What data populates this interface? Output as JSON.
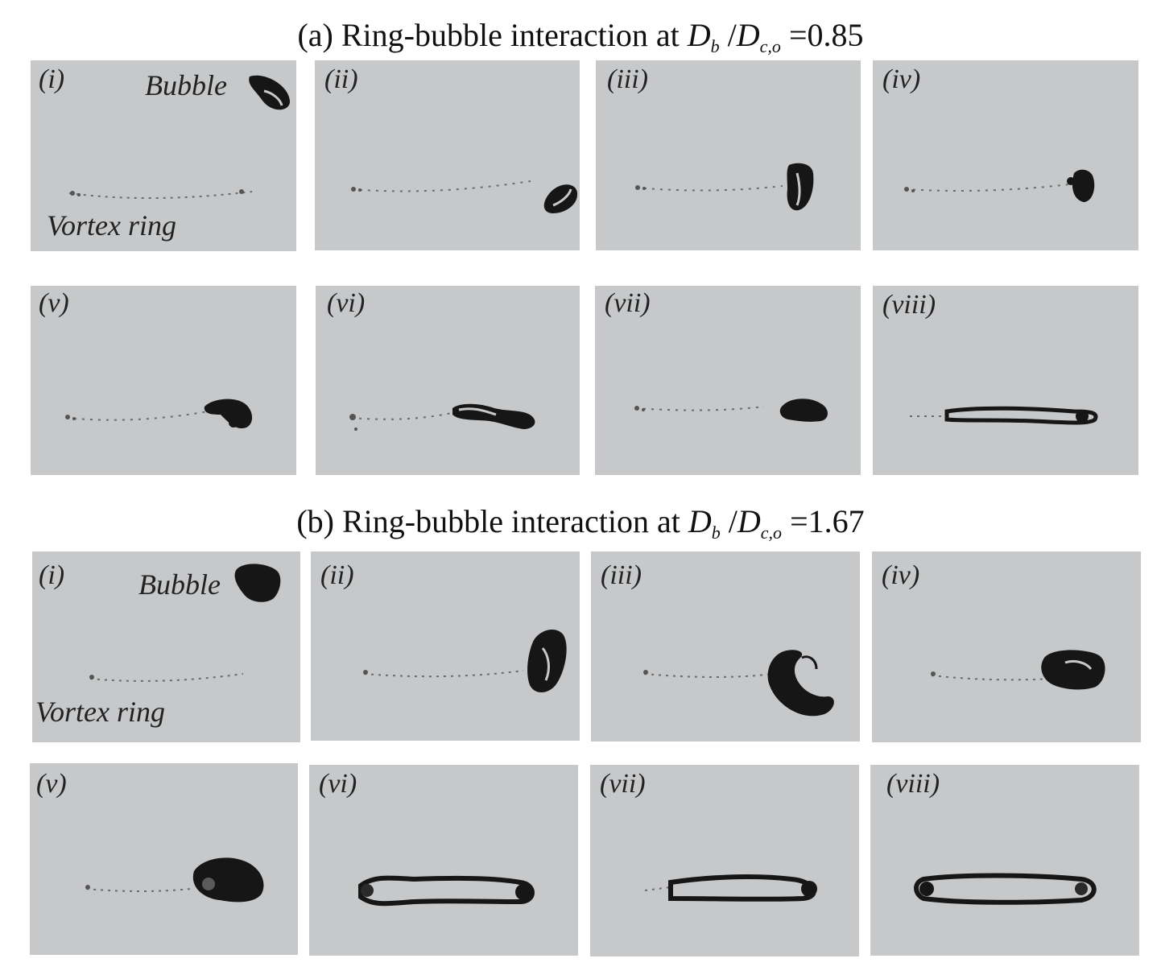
{
  "figure": {
    "section_a": {
      "title_prefix": "(a) Ring-bubble interaction at ",
      "sym_D": "D",
      "sub_b": "b",
      "slash": " /",
      "sub_co": "c,o",
      "ratio": " =0.85",
      "panel_labels": [
        "(i)",
        "(ii)",
        "(iii)",
        "(iv)",
        "(v)",
        "(vi)",
        "(vii)",
        "(viii)"
      ],
      "bubble_label": "Bubble",
      "vortex_label": "Vortex ring"
    },
    "section_b": {
      "title_prefix": "(b) Ring-bubble interaction at ",
      "sym_D": "D",
      "sub_b": "b",
      "slash": " /",
      "sub_co": "c,o",
      "ratio": " =1.67",
      "panel_labels": [
        "(i)",
        "(ii)",
        "(iii)",
        "(iv)",
        "(v)",
        "(vi)",
        "(vii)",
        "(viii)"
      ],
      "bubble_label": "Bubble",
      "vortex_label": "Vortex ring"
    },
    "colors": {
      "panel_bg": "#c7c8ca",
      "bubble": "#161616",
      "ring_trace": "#6b6b6b"
    }
  }
}
